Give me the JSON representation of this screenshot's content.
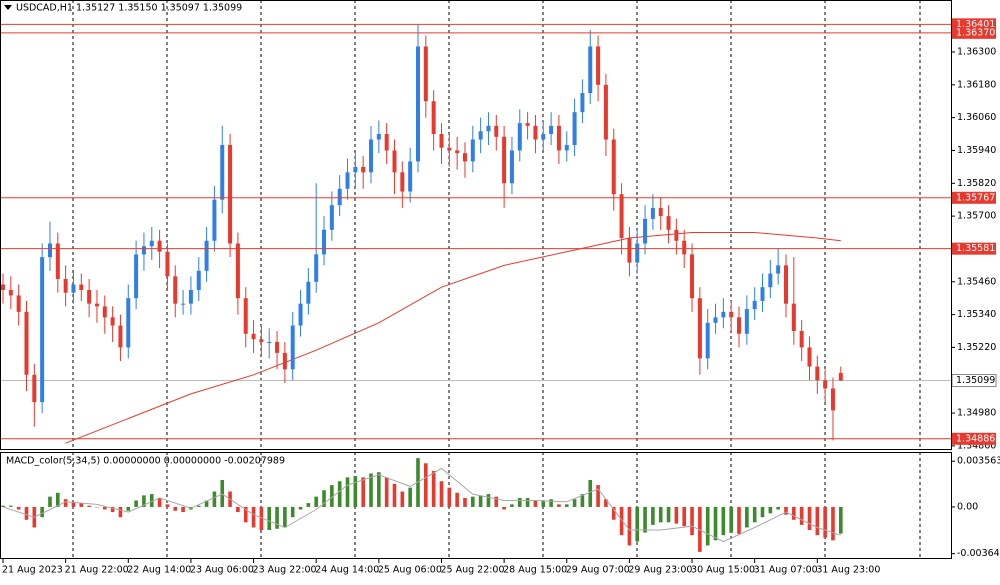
{
  "chart_data": {
    "type": "candlestick",
    "title": "USDCAD,H1  1.35127 1.35150 1.35097 1.35099",
    "up_color": "#2f7fe6",
    "down_color": "#e8392e",
    "ylim": [
      1.34856,
      1.3649
    ],
    "yticks": [
      {
        "value": 1.363,
        "label": "1.36300"
      },
      {
        "value": 1.3618,
        "label": "1.36180"
      },
      {
        "value": 1.3606,
        "label": "1.36060"
      },
      {
        "value": 1.3594,
        "label": "1.35940"
      },
      {
        "value": 1.3582,
        "label": "1.35820"
      },
      {
        "value": 1.357,
        "label": "1.35700"
      },
      {
        "value": 1.3546,
        "label": "1.35460"
      },
      {
        "value": 1.3534,
        "label": "1.35340"
      },
      {
        "value": 1.3522,
        "label": "1.35220"
      },
      {
        "value": 1.3498,
        "label": "1.34980"
      },
      {
        "value": 1.3486,
        "label": "1.34860"
      }
    ],
    "xticks": [
      {
        "value": 0,
        "label": "21 Aug 2023"
      },
      {
        "value": 8,
        "label": "21 Aug 22:00"
      },
      {
        "value": 16,
        "label": "22 Aug 14:00"
      },
      {
        "value": 24,
        "label": "23 Aug 06:00"
      },
      {
        "value": 32,
        "label": "23 Aug 22:00"
      },
      {
        "value": 40,
        "label": "24 Aug 14:00"
      },
      {
        "value": 48,
        "label": "25 Aug 06:00"
      },
      {
        "value": 56,
        "label": "25 Aug 22:00"
      },
      {
        "value": 64,
        "label": "28 Aug 15:00"
      },
      {
        "value": 72,
        "label": "29 Aug 07:00"
      },
      {
        "value": 80,
        "label": "29 Aug 23:00"
      },
      {
        "value": 88,
        "label": "30 Aug 15:00"
      },
      {
        "value": 96,
        "label": "31 Aug 07:00"
      },
      {
        "value": 104,
        "label": "31 Aug 23:00"
      }
    ],
    "levels_color": "#e8392e",
    "levels": [
      1.36401,
      {
        "value": 1.3637,
        "label": "1.36370"
      },
      1.35767,
      1.35581,
      1.34886
    ],
    "last": 1.35099,
    "last_color": "#bdbdbd",
    "ma": {
      "color": "#e8392e",
      "x": [
        8,
        16,
        24,
        32,
        40,
        48,
        56,
        64,
        72,
        80,
        88,
        96,
        104,
        107
      ],
      "values": [
        1.3487,
        1.3496,
        1.3505,
        1.3512,
        1.3521,
        1.3531,
        1.3544,
        1.3552,
        1.3557,
        1.3562,
        1.3564,
        1.3564,
        1.3562,
        1.3561
      ]
    },
    "ohlc": [
      [
        1.3545,
        1.3549,
        1.3538,
        1.3543
      ],
      [
        1.3543,
        1.3548,
        1.3536,
        1.3541
      ],
      [
        1.3541,
        1.3545,
        1.353,
        1.3535
      ],
      [
        1.3535,
        1.3539,
        1.3506,
        1.3512
      ],
      [
        1.3512,
        1.3516,
        1.3493,
        1.3502
      ],
      [
        1.3502,
        1.356,
        1.3498,
        1.3555
      ],
      [
        1.3555,
        1.3568,
        1.355,
        1.356
      ],
      [
        1.356,
        1.3564,
        1.3542,
        1.3547
      ],
      [
        1.3547,
        1.3552,
        1.3537,
        1.3542
      ],
      [
        1.3542,
        1.355,
        1.3538,
        1.3545
      ],
      [
        1.3545,
        1.3549,
        1.3539,
        1.3543
      ],
      [
        1.3543,
        1.3547,
        1.3533,
        1.3538
      ],
      [
        1.3538,
        1.3543,
        1.3531,
        1.3537
      ],
      [
        1.3537,
        1.3541,
        1.3527,
        1.3533
      ],
      [
        1.3533,
        1.3537,
        1.3524,
        1.353
      ],
      [
        1.353,
        1.3534,
        1.3517,
        1.3522
      ],
      [
        1.3522,
        1.3545,
        1.3518,
        1.354
      ],
      [
        1.354,
        1.3561,
        1.3536,
        1.3556
      ],
      [
        1.3556,
        1.3564,
        1.355,
        1.3559
      ],
      [
        1.3559,
        1.3566,
        1.3554,
        1.3561
      ],
      [
        1.3561,
        1.3565,
        1.3551,
        1.3557
      ],
      [
        1.3557,
        1.356,
        1.3543,
        1.3548
      ],
      [
        1.3548,
        1.3552,
        1.3533,
        1.3538
      ],
      [
        1.3538,
        1.3543,
        1.3534,
        1.3538
      ],
      [
        1.3538,
        1.3548,
        1.3534,
        1.3543
      ],
      [
        1.3543,
        1.3555,
        1.3539,
        1.355
      ],
      [
        1.355,
        1.3566,
        1.3546,
        1.3561
      ],
      [
        1.3561,
        1.3581,
        1.3557,
        1.3576
      ],
      [
        1.3576,
        1.3603,
        1.3571,
        1.3596
      ],
      [
        1.3596,
        1.36,
        1.3555,
        1.356
      ],
      [
        1.356,
        1.3564,
        1.3534,
        1.354
      ],
      [
        1.354,
        1.3544,
        1.3522,
        1.3527
      ],
      [
        1.3527,
        1.3532,
        1.352,
        1.3525
      ],
      [
        1.3525,
        1.353,
        1.3519,
        1.3524
      ],
      [
        1.3524,
        1.3529,
        1.3518,
        1.3524
      ],
      [
        1.3524,
        1.3528,
        1.3514,
        1.352
      ],
      [
        1.352,
        1.3524,
        1.3509,
        1.3514
      ],
      [
        1.3514,
        1.3535,
        1.351,
        1.353
      ],
      [
        1.353,
        1.3543,
        1.3526,
        1.3538
      ],
      [
        1.3538,
        1.3551,
        1.3534,
        1.3546
      ],
      [
        1.3546,
        1.3582,
        1.3542,
        1.3556
      ],
      [
        1.3556,
        1.357,
        1.3552,
        1.3565
      ],
      [
        1.3565,
        1.3579,
        1.3561,
        1.3574
      ],
      [
        1.3574,
        1.3585,
        1.357,
        1.358
      ],
      [
        1.358,
        1.3591,
        1.3576,
        1.3586
      ],
      [
        1.3586,
        1.3593,
        1.3581,
        1.3588
      ],
      [
        1.3588,
        1.3592,
        1.358,
        1.3586
      ],
      [
        1.3586,
        1.3603,
        1.3582,
        1.3598
      ],
      [
        1.3598,
        1.3605,
        1.3593,
        1.36
      ],
      [
        1.36,
        1.3604,
        1.3589,
        1.3594
      ],
      [
        1.3594,
        1.3598,
        1.3578,
        1.3586
      ],
      [
        1.3586,
        1.359,
        1.3573,
        1.3579
      ],
      [
        1.3579,
        1.3595,
        1.3575,
        1.359
      ],
      [
        1.359,
        1.364,
        1.3586,
        1.3632
      ],
      [
        1.3632,
        1.3636,
        1.3606,
        1.3612
      ],
      [
        1.3612,
        1.3616,
        1.3594,
        1.36
      ],
      [
        1.36,
        1.3604,
        1.3589,
        1.3595
      ],
      [
        1.3595,
        1.36,
        1.3588,
        1.3594
      ],
      [
        1.3594,
        1.3599,
        1.3587,
        1.3593
      ],
      [
        1.3593,
        1.3597,
        1.3584,
        1.359
      ],
      [
        1.359,
        1.3603,
        1.3586,
        1.3598
      ],
      [
        1.3598,
        1.3606,
        1.3593,
        1.3601
      ],
      [
        1.3601,
        1.3608,
        1.3596,
        1.3603
      ],
      [
        1.3603,
        1.3607,
        1.3594,
        1.3599
      ],
      [
        1.3599,
        1.3603,
        1.3573,
        1.3582
      ],
      [
        1.3582,
        1.3599,
        1.3578,
        1.3594
      ],
      [
        1.3594,
        1.3609,
        1.359,
        1.3604
      ],
      [
        1.3604,
        1.3608,
        1.3598,
        1.3603
      ],
      [
        1.3603,
        1.3607,
        1.3593,
        1.3598
      ],
      [
        1.3598,
        1.3605,
        1.3594,
        1.36
      ],
      [
        1.36,
        1.3608,
        1.3596,
        1.3603
      ],
      [
        1.3603,
        1.3607,
        1.3589,
        1.3594
      ],
      [
        1.3594,
        1.3601,
        1.359,
        1.3596
      ],
      [
        1.3596,
        1.3613,
        1.3592,
        1.3608
      ],
      [
        1.3608,
        1.362,
        1.3604,
        1.3615
      ],
      [
        1.3615,
        1.3638,
        1.3611,
        1.3632
      ],
      [
        1.3632,
        1.3636,
        1.3612,
        1.3618
      ],
      [
        1.3618,
        1.3622,
        1.3592,
        1.3598
      ],
      [
        1.3598,
        1.3602,
        1.3572,
        1.3578
      ],
      [
        1.3578,
        1.3582,
        1.3556,
        1.3562
      ],
      [
        1.3562,
        1.3566,
        1.3548,
        1.3553
      ],
      [
        1.3553,
        1.3565,
        1.3549,
        1.356
      ],
      [
        1.356,
        1.3574,
        1.3556,
        1.3569
      ],
      [
        1.3569,
        1.3578,
        1.3565,
        1.3573
      ],
      [
        1.3573,
        1.3577,
        1.3565,
        1.357
      ],
      [
        1.357,
        1.3574,
        1.356,
        1.3565
      ],
      [
        1.3565,
        1.3569,
        1.3556,
        1.3561
      ],
      [
        1.3561,
        1.3565,
        1.3551,
        1.3556
      ],
      [
        1.3556,
        1.356,
        1.3535,
        1.354
      ],
      [
        1.354,
        1.3544,
        1.3512,
        1.3518
      ],
      [
        1.3518,
        1.3536,
        1.3514,
        1.3531
      ],
      [
        1.3531,
        1.3538,
        1.3527,
        1.3533
      ],
      [
        1.3533,
        1.354,
        1.3529,
        1.3535
      ],
      [
        1.3535,
        1.3539,
        1.3528,
        1.3533
      ],
      [
        1.3533,
        1.3537,
        1.3522,
        1.3527
      ],
      [
        1.3527,
        1.3541,
        1.3523,
        1.3536
      ],
      [
        1.3536,
        1.3544,
        1.3532,
        1.3539
      ],
      [
        1.3539,
        1.3549,
        1.3535,
        1.3544
      ],
      [
        1.3544,
        1.3554,
        1.354,
        1.3549
      ],
      [
        1.3549,
        1.3558,
        1.3545,
        1.3552
      ],
      [
        1.3552,
        1.3556,
        1.3533,
        1.3538
      ],
      [
        1.3538,
        1.3555,
        1.3523,
        1.3528
      ],
      [
        1.3528,
        1.3532,
        1.3517,
        1.3522
      ],
      [
        1.3522,
        1.3526,
        1.351,
        1.3515
      ],
      [
        1.3515,
        1.3519,
        1.3505,
        1.351
      ],
      [
        1.351,
        1.3514,
        1.3502,
        1.3507
      ],
      [
        1.3507,
        1.3511,
        1.3488,
        1.3499
      ],
      [
        1.35127,
        1.3515,
        1.35097,
        1.35099
      ]
    ],
    "macd": {
      "label": "MACD_color(5,34,5) 0.00000000 0.00000000 -0.00207989",
      "up_color": "#3b8a2c",
      "down_color": "#e8392e",
      "signal_color": "#a8a8a8",
      "ylim": [
        -0.0039,
        0.0042
      ],
      "yticks": [
        {
          "value": 0.003563,
          "label": "0.0035630"
        },
        {
          "value": 0,
          "label": "0.00"
        },
        {
          "value": -0.00364,
          "label": "-0.003640"
        }
      ],
      "values": [
        0.0001,
        0.0001,
        -0.0002,
        -0.001,
        -0.0016,
        -0.0008,
        0.0008,
        0.0011,
        0.0006,
        0.0004,
        0.0003,
        0.0001,
        0,
        -0.0002,
        -0.0004,
        -0.0008,
        -0.0003,
        0.0005,
        0.0009,
        0.001,
        0.0007,
        0.0002,
        -0.0003,
        -0.0004,
        -0.0002,
        0.0001,
        0.0005,
        0.0012,
        0.0021,
        0.0012,
        -0.0004,
        -0.0012,
        -0.0016,
        -0.0018,
        -0.0018,
        -0.0017,
        -0.0016,
        -0.0008,
        -0.0002,
        0.0003,
        0.0008,
        0.0013,
        0.0017,
        0.002,
        0.0023,
        0.0024,
        0.0023,
        0.0026,
        0.0027,
        0.0023,
        0.0018,
        0.0012,
        0.0015,
        0.0038,
        0.0034,
        0.0028,
        0.002,
        0.0015,
        0.0011,
        0.0007,
        0.0008,
        0.0009,
        0.001,
        0.0008,
        -0.0002,
        0.0002,
        0.0007,
        0.0007,
        0.0005,
        0.0005,
        0.0006,
        0.0002,
        0.0002,
        0.0006,
        0.001,
        0.0021,
        0.0017,
        0.0006,
        -0.001,
        -0.0022,
        -0.003,
        -0.0027,
        -0.002,
        -0.0014,
        -0.0012,
        -0.0012,
        -0.0013,
        -0.0015,
        -0.0022,
        -0.0035,
        -0.003,
        -0.0026,
        -0.0022,
        -0.002,
        -0.0021,
        -0.0016,
        -0.0012,
        -0.0008,
        -0.0005,
        -0.0002,
        -0.0006,
        -0.001,
        -0.0014,
        -0.0018,
        -0.0022,
        -0.0024,
        -0.0026,
        -0.00207989
      ],
      "signal": {
        "x": [
          0,
          4,
          8,
          12,
          16,
          20,
          24,
          28,
          32,
          36,
          40,
          44,
          48,
          52,
          56,
          60,
          64,
          68,
          72,
          76,
          80,
          84,
          88,
          92,
          96,
          100,
          104,
          107
        ],
        "values": [
          0,
          -0.0008,
          0.0004,
          0.0002,
          -0.0004,
          0.0007,
          -0.0001,
          0.001,
          -0.0006,
          -0.0016,
          -0.0002,
          0.0017,
          0.0025,
          0.0016,
          0.003,
          0.001,
          0.0005,
          0.0005,
          0.0004,
          0.0014,
          -0.0018,
          -0.0018,
          -0.0015,
          -0.0027,
          -0.0016,
          -0.0004,
          -0.0016,
          -0.0022
        ]
      }
    }
  }
}
